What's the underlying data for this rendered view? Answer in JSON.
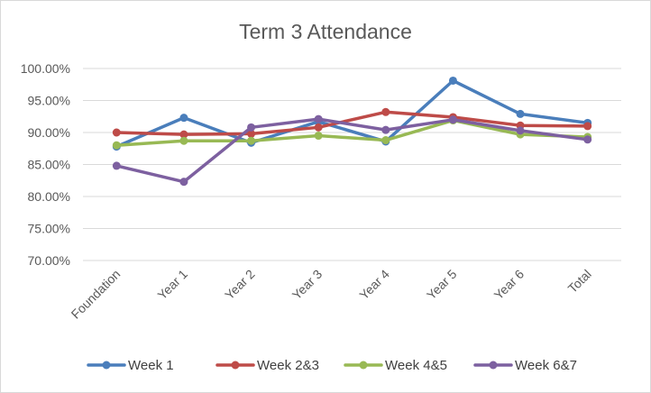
{
  "chart_data": {
    "type": "line",
    "title": "Term 3 Attendance",
    "xlabel": "",
    "ylabel": "",
    "categories": [
      "Foundation",
      "Year 1",
      "Year 2",
      "Year 3",
      "Year 4",
      "Year 5",
      "Year 6",
      "Total"
    ],
    "ylim": [
      70,
      100
    ],
    "yticks": [
      "100.00%",
      "95.00%",
      "90.00%",
      "85.00%",
      "80.00%",
      "75.00%",
      "70.00%"
    ],
    "ytick_values": [
      100,
      95,
      90,
      85,
      80,
      75,
      70
    ],
    "grid": true,
    "legend": "bottom",
    "series": [
      {
        "name": "Week 1",
        "color": "#4a7ebb",
        "values": [
          87.8,
          92.3,
          88.4,
          91.7,
          88.6,
          98.1,
          92.9,
          91.5
        ]
      },
      {
        "name": "Week 2&3",
        "color": "#be4b48",
        "values": [
          90.0,
          89.7,
          89.8,
          90.8,
          93.2,
          92.4,
          91.1,
          91.0
        ]
      },
      {
        "name": "Week 4&5",
        "color": "#98b954",
        "values": [
          88.0,
          88.7,
          88.7,
          89.5,
          88.8,
          91.9,
          89.7,
          89.3
        ]
      },
      {
        "name": "Week 6&7",
        "color": "#7d60a0",
        "values": [
          84.8,
          82.3,
          90.8,
          92.1,
          90.4,
          92.0,
          90.3,
          88.9
        ]
      }
    ]
  }
}
